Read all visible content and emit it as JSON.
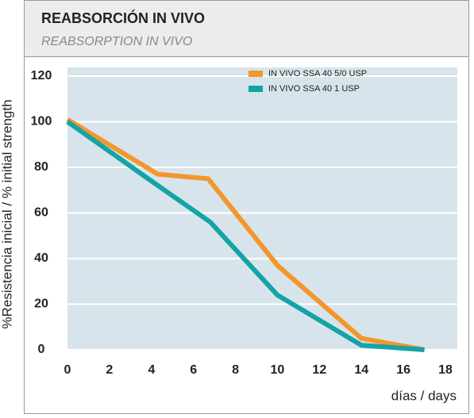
{
  "chart_data": {
    "type": "line",
    "title": "REABSORCIÓN IN VIVO",
    "subtitle": "REABSORPTION IN VIVO",
    "ylabel": "%Resistencia inicial / % initial strength",
    "xlabel": "días / days",
    "xlim": [
      0,
      18
    ],
    "xticks": [
      0,
      2,
      4,
      6,
      8,
      10,
      12,
      14,
      16,
      18
    ],
    "ylim": [
      0,
      120
    ],
    "yticks": [
      0,
      20,
      40,
      60,
      80,
      100,
      120
    ],
    "grid": true,
    "legend": "upper right",
    "series": [
      {
        "name": "IN VIVO SSA 40 5/0 USP",
        "color": "#f3962b",
        "x": [
          0,
          4.3,
          6.7,
          10,
          14,
          17
        ],
        "values": [
          101,
          77,
          75,
          37,
          5,
          0
        ]
      },
      {
        "name": "IN VIVO SSA 40 1 USP",
        "color": "#14a3a6",
        "x": [
          0,
          4,
          6.8,
          10,
          14,
          17
        ],
        "values": [
          100,
          74,
          56,
          24,
          2,
          0
        ]
      }
    ]
  }
}
